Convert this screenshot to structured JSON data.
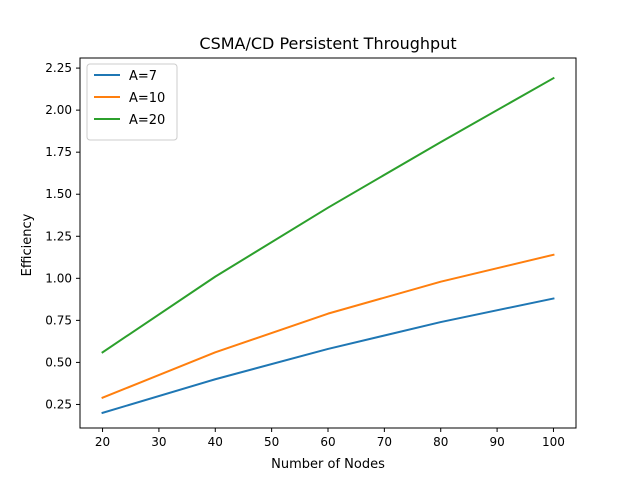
{
  "chart_data": {
    "type": "line",
    "title": "CSMA/CD Persistent Throughput",
    "xlabel": "Number of Nodes",
    "ylabel": "Efficiency",
    "xlim": [
      16,
      104
    ],
    "ylim": [
      0.11,
      2.31
    ],
    "xticks": [
      20,
      30,
      40,
      50,
      60,
      70,
      80,
      90,
      100
    ],
    "yticks": [
      0.25,
      0.5,
      0.75,
      1.0,
      1.25,
      1.5,
      1.75,
      2.0,
      2.25
    ],
    "grid": false,
    "legend_position": "upper-left",
    "x": [
      20,
      40,
      60,
      80,
      100
    ],
    "series": [
      {
        "name": "A=7",
        "color": "#1f77b4",
        "values": [
          0.2,
          0.4,
          0.58,
          0.74,
          0.88
        ]
      },
      {
        "name": "A=10",
        "color": "#ff7f0e",
        "values": [
          0.29,
          0.56,
          0.79,
          0.98,
          1.14
        ]
      },
      {
        "name": "A=20",
        "color": "#2ca02c",
        "values": [
          0.56,
          1.01,
          1.42,
          1.81,
          2.19
        ]
      }
    ]
  }
}
